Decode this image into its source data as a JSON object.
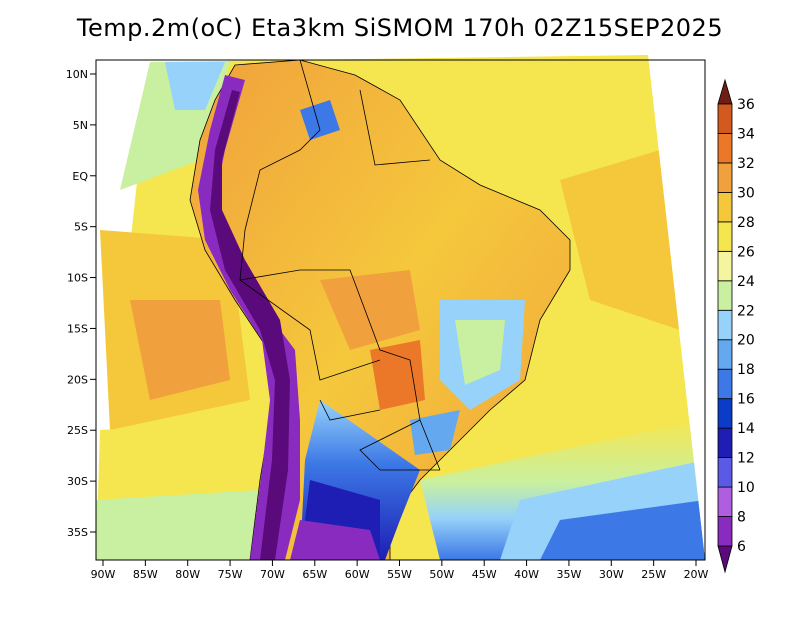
{
  "title": "Temp.2m(oC) Eta3km SiSMOM 170h 02Z15SEP2025",
  "map": {
    "lon_range": [
      -91,
      -20
    ],
    "lat_range": [
      -38.5,
      11
    ],
    "lon_ticks": [
      "90W",
      "85W",
      "80W",
      "75W",
      "70W",
      "65W",
      "60W",
      "55W",
      "50W",
      "45W",
      "40W",
      "35W",
      "30W",
      "25W",
      "20W"
    ],
    "lat_ticks": [
      "10N",
      "5N",
      "EQ",
      "5S",
      "10S",
      "15S",
      "20S",
      "25S",
      "30S",
      "35S"
    ]
  },
  "colorbar": {
    "labels": [
      "6",
      "8",
      "10",
      "12",
      "14",
      "16",
      "18",
      "20",
      "22",
      "24",
      "26",
      "28",
      "30",
      "32",
      "34",
      "36"
    ],
    "colors": [
      "#5a0a7a",
      "#8a2bbf",
      "#b05ee0",
      "#5a5ae6",
      "#1e1eb4",
      "#0a3cc8",
      "#3c78e6",
      "#64a8f0",
      "#96d2fa",
      "#c8f0a0",
      "#f5f5a0",
      "#f5e650",
      "#f5c83c",
      "#f0a03c",
      "#eb7828",
      "#d25a1e",
      "#a0321e",
      "#6e1e14"
    ]
  }
}
